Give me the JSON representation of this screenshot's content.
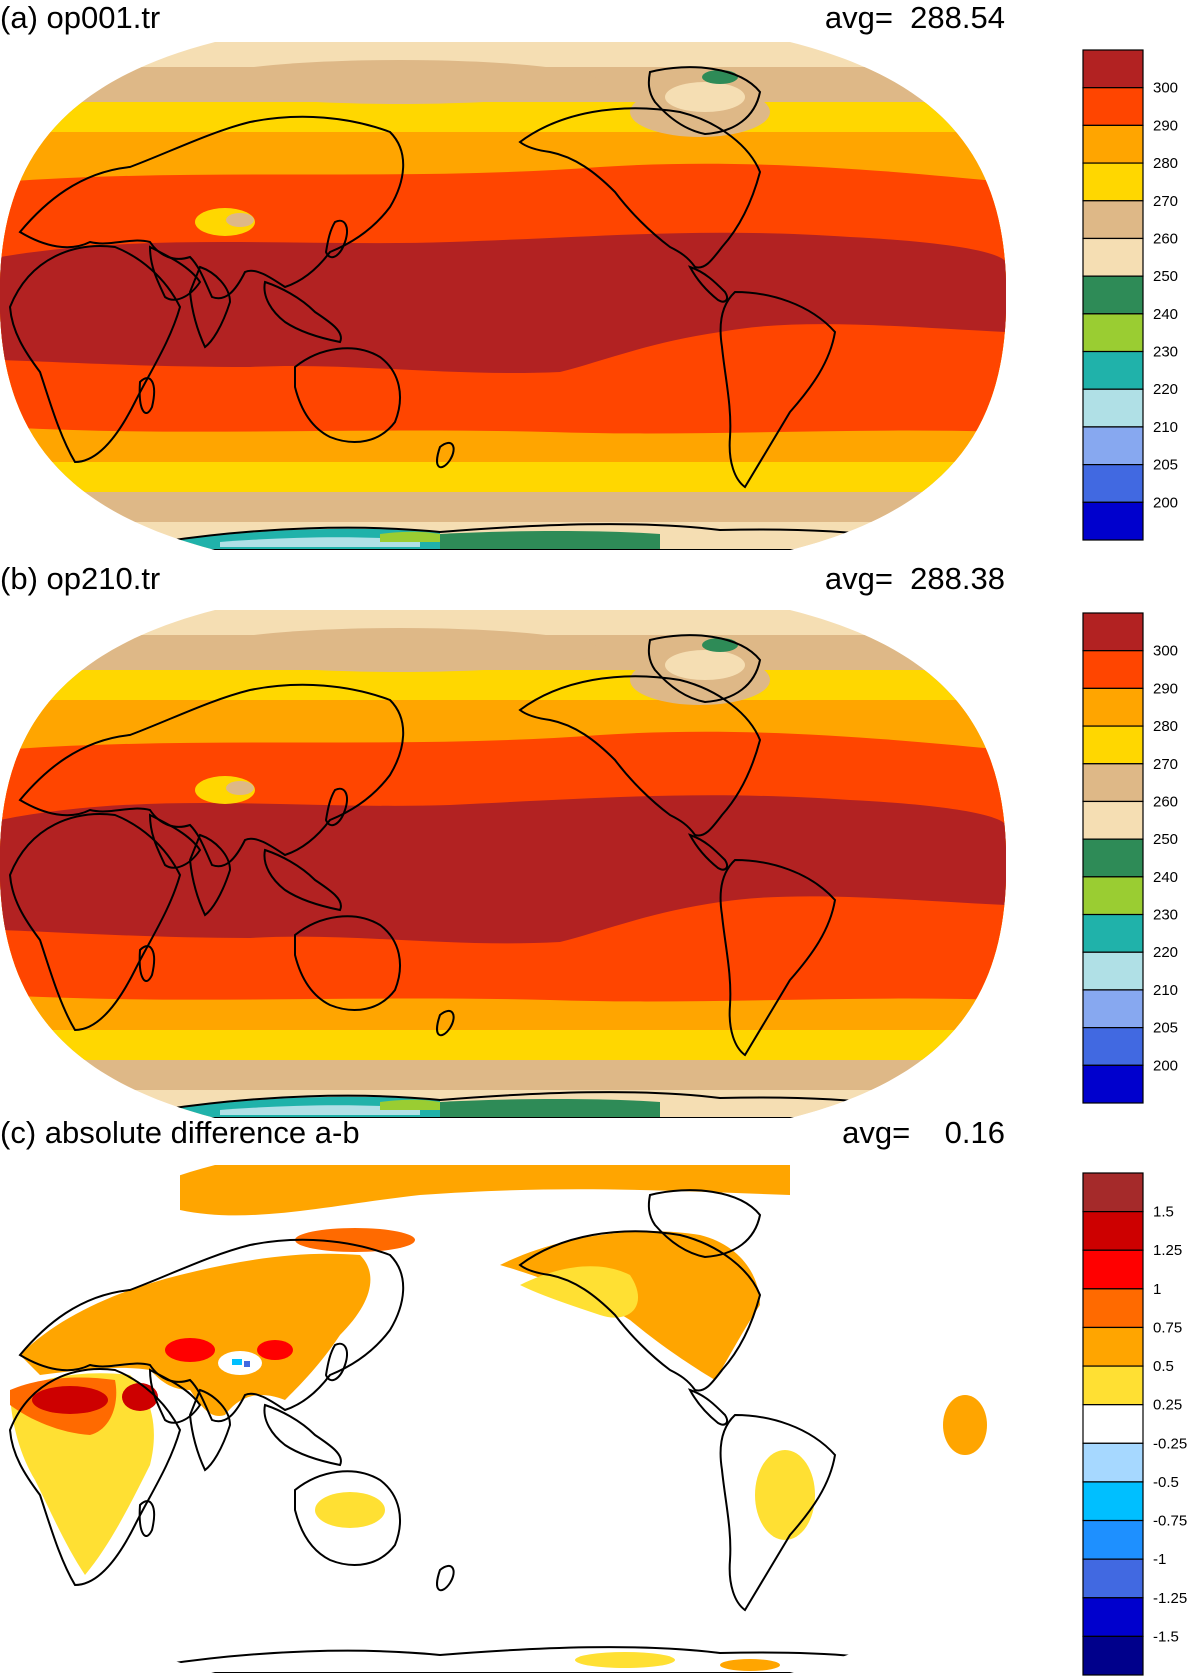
{
  "colors": {
    "levels12": [
      "#b22222",
      "#ff4500",
      "#ffa500",
      "#ffd700",
      "#deb887",
      "#f5deb3",
      "#2e8b57",
      "#9acd32",
      "#20b2aa",
      "#b0e0e6",
      "#87a8f0",
      "#4169e1",
      "#0000cd"
    ],
    "diff": [
      "#a52a2a",
      "#cd0000",
      "#ff0000",
      "#ff6a00",
      "#ffa500",
      "#ffe033",
      "#ffffff",
      "#a6d8ff",
      "#00bfff",
      "#1e90ff",
      "#4169e1",
      "#0000cd",
      "#00008b"
    ],
    "coast": "#000000"
  },
  "panels": [
    {
      "id": "a",
      "title": "(a) op001.tr",
      "avg_label": "avg=",
      "avg_value": "288.54",
      "colorbar": {
        "labels": [
          "300",
          "290",
          "280",
          "270",
          "260",
          "250",
          "240",
          "230",
          "220",
          "210",
          "205",
          "200"
        ]
      },
      "bands": [
        {
          "band": "tropics",
          "color_index": 0
        },
        {
          "band": "subtropics",
          "color_index": 1
        },
        {
          "band": "mid-latitudes",
          "color_index": 2
        },
        {
          "band": "high-latitudes",
          "color_index": 3
        },
        {
          "band": "subpolar",
          "color_index": 4
        },
        {
          "band": "polar",
          "color_index": 5
        },
        {
          "band": "antarctic",
          "color_index": 8
        }
      ]
    },
    {
      "id": "b",
      "title": "(b) op210.tr",
      "avg_label": "avg=",
      "avg_value": "288.38",
      "colorbar": {
        "labels": [
          "300",
          "290",
          "280",
          "270",
          "260",
          "250",
          "240",
          "230",
          "220",
          "210",
          "205",
          "200"
        ]
      }
    },
    {
      "id": "c",
      "title": "(c) absolute difference a-b",
      "avg_label": "avg=",
      "avg_value": "0.16",
      "colorbar": {
        "labels": [
          "1.5",
          "1.25",
          "1",
          "0.75",
          "0.5",
          "0.25",
          "-0.25",
          "-0.5",
          "-0.75",
          "-1",
          "-1.25",
          "-1.5"
        ]
      }
    }
  ]
}
